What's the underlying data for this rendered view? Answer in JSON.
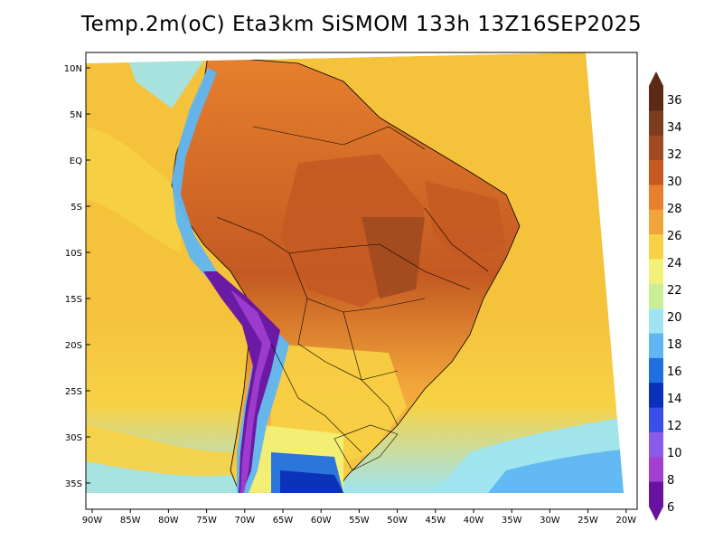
{
  "title": "Temp.2m(oC) Eta3km SiSMOM 133h 13Z16SEP2025",
  "map": {
    "lat_labels": [
      "10N",
      "5N",
      "EQ",
      "5S",
      "10S",
      "15S",
      "20S",
      "25S",
      "30S",
      "35S"
    ],
    "lon_labels": [
      "90W",
      "85W",
      "80W",
      "75W",
      "70W",
      "65W",
      "60W",
      "55W",
      "50W",
      "45W",
      "40W",
      "35W",
      "30W",
      "25W",
      "20W"
    ],
    "ocean_color": "#f5c23c",
    "land_color": "#e6802e"
  },
  "colorbar": {
    "labels": [
      "36",
      "34",
      "32",
      "30",
      "28",
      "26",
      "24",
      "22",
      "20",
      "18",
      "16",
      "14",
      "12",
      "10",
      "8",
      "6"
    ],
    "colors": [
      "#5a2a16",
      "#7a3d1f",
      "#a04a20",
      "#c45a22",
      "#e6802e",
      "#f1a43a",
      "#f8d245",
      "#f2f27a",
      "#c8ef96",
      "#9fe5f0",
      "#5fb6f2",
      "#1f6fe0",
      "#0a2fb8",
      "#3a4fe8",
      "#8a5ae8",
      "#a23fd0",
      "#6a12a0"
    ]
  }
}
